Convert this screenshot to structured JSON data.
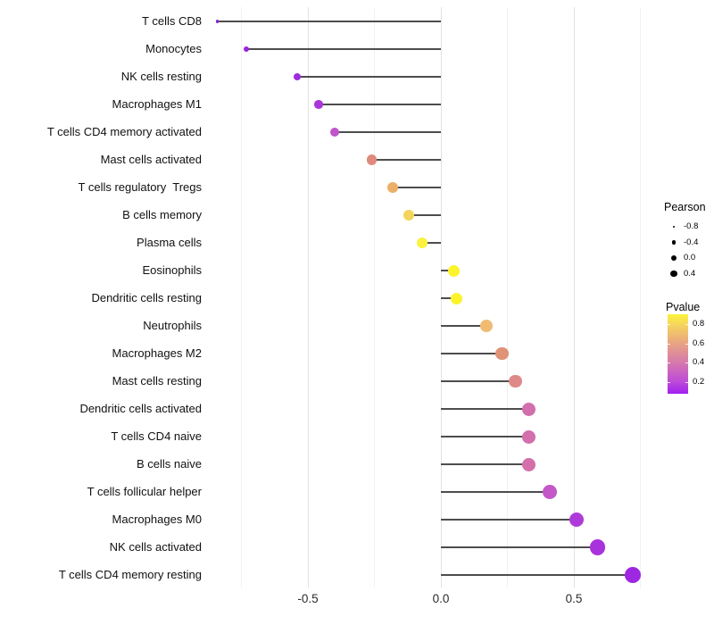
{
  "chart_data": {
    "type": "scatter",
    "subtype": "lollipop",
    "title": "",
    "xlabel": "",
    "ylabel": "",
    "xlim": [
      -0.88,
      0.79
    ],
    "stem_base": 0,
    "x_axis": {
      "ticks": [
        {
          "value": -0.5,
          "label": "-0.5"
        },
        {
          "value": 0.0,
          "label": "0.0"
        },
        {
          "value": 0.5,
          "label": "0.5"
        }
      ]
    },
    "x_grid": {
      "major": [
        -0.5,
        0.0,
        0.5
      ],
      "minor": [
        -0.75,
        -0.25,
        0.25,
        0.75
      ]
    },
    "points": [
      {
        "label": "T cells CD8",
        "pearson": -0.84,
        "pvalue_est": 0.08,
        "color": "#8F1FD0",
        "r": 1.8
      },
      {
        "label": "Monocytes",
        "pearson": -0.73,
        "pvalue_est": 0.09,
        "color": "#9A24E0",
        "r": 3.0
      },
      {
        "label": "NK cells resting",
        "pearson": -0.54,
        "pvalue_est": 0.11,
        "color": "#A02BDE",
        "r": 4.4
      },
      {
        "label": "Macrophages M1",
        "pearson": -0.46,
        "pvalue_est": 0.14,
        "color": "#A934D8",
        "r": 4.8
      },
      {
        "label": "T cells CD4 memory activated",
        "pearson": -0.4,
        "pvalue_est": 0.25,
        "color": "#C055CC",
        "r": 5.1
      },
      {
        "label": "Mast cells activated",
        "pearson": -0.26,
        "pvalue_est": 0.55,
        "color": "#E08A7E",
        "r": 5.6
      },
      {
        "label": "T cells regulatory  Tregs",
        "pearson": -0.18,
        "pvalue_est": 0.68,
        "color": "#ECAF67",
        "r": 5.9
      },
      {
        "label": "B cells memory",
        "pearson": -0.12,
        "pvalue_est": 0.78,
        "color": "#F4D55B",
        "r": 6.1
      },
      {
        "label": "Plasma cells",
        "pearson": -0.07,
        "pvalue_est": 0.86,
        "color": "#FAF23F",
        "r": 6.3
      },
      {
        "label": "Eosinophils",
        "pearson": 0.05,
        "pvalue_est": 0.9,
        "color": "#FCF32C",
        "r": 6.5
      },
      {
        "label": "Dendritic cells resting",
        "pearson": 0.06,
        "pvalue_est": 0.9,
        "color": "#FCF32C",
        "r": 6.5
      },
      {
        "label": "Neutrophils",
        "pearson": 0.17,
        "pvalue_est": 0.72,
        "color": "#F0BC74",
        "r": 6.9
      },
      {
        "label": "Macrophages M2",
        "pearson": 0.23,
        "pvalue_est": 0.6,
        "color": "#E09376",
        "r": 7.1
      },
      {
        "label": "Mast cells resting",
        "pearson": 0.28,
        "pvalue_est": 0.55,
        "color": "#DF8A89",
        "r": 7.3
      },
      {
        "label": "Dendritic cells activated",
        "pearson": 0.33,
        "pvalue_est": 0.42,
        "color": "#D26FAC",
        "r": 7.5
      },
      {
        "label": "T cells CD4 naive",
        "pearson": 0.33,
        "pvalue_est": 0.42,
        "color": "#D26FAC",
        "r": 7.5
      },
      {
        "label": "B cells naive",
        "pearson": 0.33,
        "pvalue_est": 0.42,
        "color": "#D46FA9",
        "r": 7.5
      },
      {
        "label": "T cells follicular helper",
        "pearson": 0.41,
        "pvalue_est": 0.32,
        "color": "#C558C8",
        "r": 7.9
      },
      {
        "label": "Macrophages M0",
        "pearson": 0.51,
        "pvalue_est": 0.17,
        "color": "#AE3BD9",
        "r": 8.3
      },
      {
        "label": "NK cells activated",
        "pearson": 0.59,
        "pvalue_est": 0.13,
        "color": "#A832DC",
        "r": 8.6
      },
      {
        "label": "T cells CD4 memory resting",
        "pearson": 0.72,
        "pvalue_est": 0.09,
        "color": "#9E27E2",
        "r": 9.0
      }
    ],
    "legends": {
      "pearson": {
        "title": "Pearson",
        "entries": [
          {
            "label": "-0.8",
            "r": 1.4
          },
          {
            "label": "-0.4",
            "r": 2.3
          },
          {
            "label": "0.0",
            "r": 3.0
          },
          {
            "label": "0.4",
            "r": 3.6
          }
        ]
      },
      "pvalue": {
        "title": "Pvalue",
        "domain": [
          0.08,
          0.9
        ],
        "ticks": [
          {
            "value": 0.8,
            "label": "0.8"
          },
          {
            "value": 0.6,
            "label": "0.6"
          },
          {
            "value": 0.4,
            "label": "0.4"
          },
          {
            "value": 0.2,
            "label": "0.2"
          }
        ],
        "gradient_bottom_to_top": [
          {
            "offset": 0.0,
            "color": "#A020F0"
          },
          {
            "offset": 0.15,
            "color": "#BC4BD8"
          },
          {
            "offset": 0.39,
            "color": "#D678AE"
          },
          {
            "offset": 0.63,
            "color": "#E8A383"
          },
          {
            "offset": 0.88,
            "color": "#F6D75B"
          },
          {
            "offset": 1.0,
            "color": "#FBF33C"
          }
        ]
      }
    },
    "style_colors": {
      "stem": "#4D4D4D",
      "grid_major": "#E3E3E3",
      "grid_minor": "#F1F1F1",
      "axis_text": "#2B2B2B",
      "label_text": "#111111",
      "background": "#FFFFFF"
    }
  }
}
